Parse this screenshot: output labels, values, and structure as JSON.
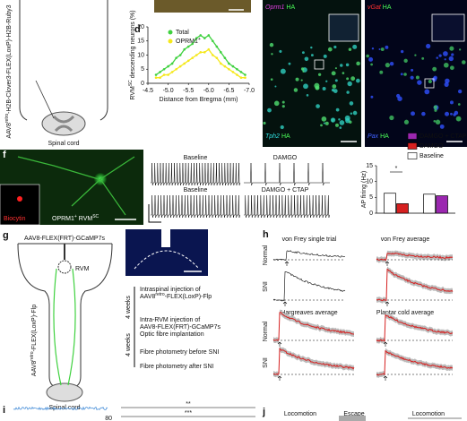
{
  "chart_data": [
    {
      "type": "line",
      "panel": "d",
      "y_label_parts": [
        "RVM",
        "SC",
        " descending neurons (%)"
      ],
      "x_label": "Distance from Bregma (mm)",
      "x": [
        -4.7,
        -4.8,
        -4.9,
        -5.0,
        -5.1,
        -5.2,
        -5.3,
        -5.4,
        -5.5,
        -5.6,
        -5.7,
        -5.8,
        -5.9,
        -6.0,
        -6.1,
        -6.2,
        -6.3,
        -6.4,
        -6.5,
        -6.6,
        -6.7,
        -6.8,
        -6.9
      ],
      "series": [
        {
          "name": "Total",
          "color": "#3fd13f",
          "values": [
            3,
            4,
            5,
            6,
            7,
            9,
            10,
            12,
            13,
            14,
            16,
            17,
            16,
            17,
            15,
            13,
            11,
            9,
            7,
            6,
            5,
            4,
            3
          ]
        },
        {
          "name": "OPRM1",
          "name_sup": "+",
          "color": "#f5e81c",
          "values": [
            2,
            2,
            3,
            3,
            4,
            5,
            6,
            7,
            8,
            9,
            10,
            11,
            11,
            12,
            10,
            9,
            7,
            6,
            5,
            4,
            3,
            2,
            2
          ]
        }
      ],
      "xlim": [
        -4.5,
        -7.0
      ],
      "xticks": [
        -4.5,
        {
          "value": -5.0,
          "label": "-5.0"
        },
        -5.5,
        {
          "value": -6.0,
          "label": "-6.0"
        },
        -6.5,
        {
          "value": -7.0,
          "label": "-7.0"
        }
      ],
      "ylim": [
        0,
        20
      ],
      "yticks": [
        0,
        5,
        10,
        15,
        20
      ]
    },
    {
      "type": "bar",
      "panel": "f",
      "y_label": "AP firing (Hz)",
      "annotation": "*",
      "categories": [
        null,
        null
      ],
      "series": [
        {
          "name": "DAMGO + CTAP",
          "color": "#9b27b0",
          "values": [
            null,
            5.5
          ]
        },
        {
          "name": "DAMGO",
          "color": "#d62020",
          "values": [
            3,
            null
          ]
        },
        {
          "name": "Baseline",
          "color": "#ffffff",
          "values": [
            6.3,
            6
          ]
        }
      ],
      "ylim": [
        0,
        15
      ],
      "yticks": [
        0,
        5,
        10,
        15
      ]
    }
  ],
  "figure": {
    "top_left": {
      "virus_parts": [
        "AAV8",
        "retro",
        "-H2B-Clover3-FLEX(LoxP)-H2B-Ruby3"
      ],
      "spinal_cord": "Spinal cord"
    },
    "images": {
      "oprm1": "Oprm1",
      "ha": "HA",
      "vgat": "vGat",
      "tph2": "Tph2",
      "pax": "Pax"
    },
    "panel_f": {
      "letter": "f",
      "biocytin": "Biocytin",
      "cell_parts": [
        "OPRM1",
        "+",
        " RVM",
        "SC"
      ],
      "traces": [
        "Baseline",
        "DAMGO",
        "Baseline",
        "DAMGO + CTAP"
      ]
    },
    "panel_g": {
      "letter": "g",
      "gcamp": "AAV8-FLEX(FRT)-GCaMP7s",
      "rvm": "RVM",
      "flp_parts": [
        "AAV8",
        "retro",
        "-FLEX(LoxP)-Flp"
      ],
      "spinal_cord": "Spinal cord",
      "weeks1": "4 weeks",
      "weeks2": "4 weeks",
      "step1a": "Intraspinal injection of",
      "step1b_parts": [
        "AAV8",
        "retro",
        "-FLEX(LoxP)-Flp"
      ],
      "step2a": "Intra-RVM injection of",
      "step2b": "AAV8-FLEX(FRT)-GCaMP7s",
      "step2c": "Optic fibre implantation",
      "step3": "Fibre photometry before SNI",
      "step4": "Fibre photometry after SNI"
    },
    "panel_h": {
      "letter": "h",
      "t1": "von Frey single trial",
      "t2": "von Frey average",
      "t3": "Hargreaves average",
      "t4": "Plantar cold average",
      "normal1": "Normal",
      "sni1": "SNI",
      "normal2": "Normal",
      "sni2": "SNI"
    },
    "panel_i": {
      "letter": "i",
      "sig1": "**",
      "sig2": "***",
      "tick": "80"
    },
    "panel_j": {
      "letter": "j",
      "l1": "Locomotion",
      "l2": "Escape",
      "l3": "Locomotion"
    }
  }
}
